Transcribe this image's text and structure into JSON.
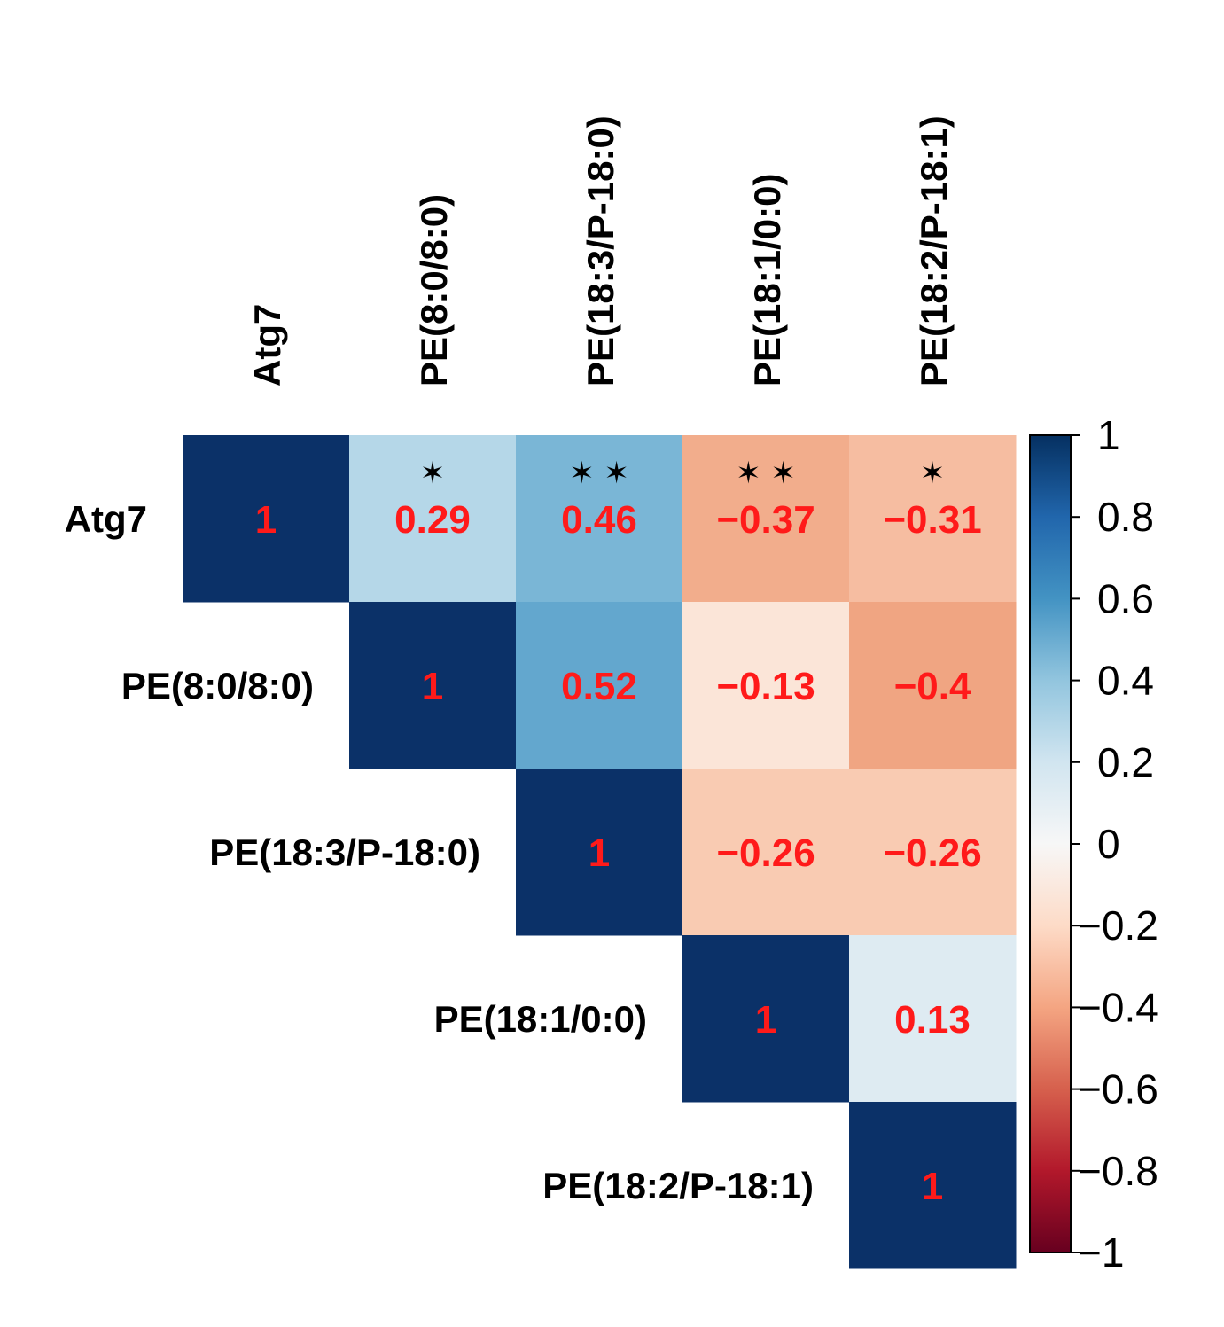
{
  "chart_data": {
    "type": "heatmap",
    "title": "",
    "variables": [
      "Atg7",
      "PE(8:0/8:0)",
      "PE(18:3/P-18:0)",
      "PE(18:1/0:0)",
      "PE(18:2/P-18:1)"
    ],
    "layout": "upper-triangle",
    "cells": [
      {
        "row": 0,
        "col": 0,
        "value": 1,
        "label": "1",
        "sig": ""
      },
      {
        "row": 0,
        "col": 1,
        "value": 0.29,
        "label": "0.29",
        "sig": "*"
      },
      {
        "row": 0,
        "col": 2,
        "value": 0.46,
        "label": "0.46",
        "sig": "**"
      },
      {
        "row": 0,
        "col": 3,
        "value": -0.37,
        "label": "−0.37",
        "sig": "**"
      },
      {
        "row": 0,
        "col": 4,
        "value": -0.31,
        "label": "−0.31",
        "sig": "*"
      },
      {
        "row": 1,
        "col": 1,
        "value": 1,
        "label": "1",
        "sig": ""
      },
      {
        "row": 1,
        "col": 2,
        "value": 0.52,
        "label": "0.52",
        "sig": ""
      },
      {
        "row": 1,
        "col": 3,
        "value": -0.13,
        "label": "−0.13",
        "sig": ""
      },
      {
        "row": 1,
        "col": 4,
        "value": -0.4,
        "label": "−0.4",
        "sig": ""
      },
      {
        "row": 2,
        "col": 2,
        "value": 1,
        "label": "1",
        "sig": ""
      },
      {
        "row": 2,
        "col": 3,
        "value": -0.26,
        "label": "−0.26",
        "sig": ""
      },
      {
        "row": 2,
        "col": 4,
        "value": -0.26,
        "label": "−0.26",
        "sig": ""
      },
      {
        "row": 3,
        "col": 3,
        "value": 1,
        "label": "1",
        "sig": ""
      },
      {
        "row": 3,
        "col": 4,
        "value": 0.13,
        "label": "0.13",
        "sig": ""
      },
      {
        "row": 4,
        "col": 4,
        "value": 1,
        "label": "1",
        "sig": ""
      }
    ],
    "colorbar": {
      "range": [
        -1,
        1
      ],
      "ticks": [
        1,
        0.8,
        0.6,
        0.4,
        0.2,
        0,
        -0.2,
        -0.4,
        -0.6,
        -0.8,
        -1
      ],
      "tick_labels": [
        "1",
        "0.8",
        "0.6",
        "0.4",
        "0.2",
        "0",
        "−0.2",
        "−0.4",
        "−0.6",
        "−0.8",
        "−1"
      ],
      "placement": "right"
    },
    "colors": {
      "strong_positive": "#0b3168",
      "strong_negative": "#6b0a1f",
      "zero": "#ffffff",
      "value_text": "#ff1a1a",
      "sig_text": "#000000"
    }
  }
}
